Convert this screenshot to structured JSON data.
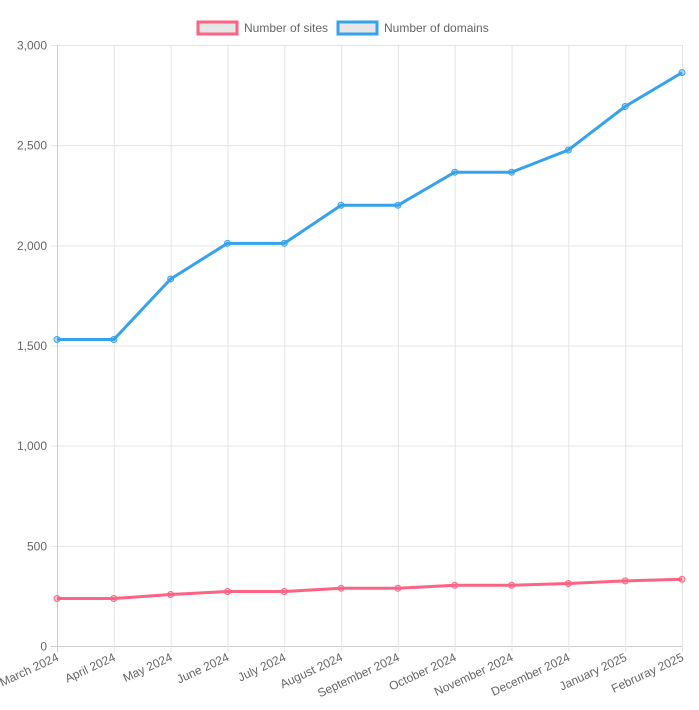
{
  "chart_data": {
    "type": "line",
    "title": "",
    "xlabel": "",
    "ylabel": "",
    "ylim": [
      0,
      3000
    ],
    "yticks": [
      0,
      500,
      1000,
      1500,
      2000,
      2500,
      3000
    ],
    "ytick_labels": [
      "0",
      "500",
      "1,000",
      "1,500",
      "2,000",
      "2,500",
      "3,000"
    ],
    "grid": true,
    "legend_position": "top",
    "categories": [
      "March 2024",
      "April 2024",
      "May 2024",
      "June 2024",
      "July 2024",
      "August 2024",
      "September 2024",
      "October 2024",
      "November 2024",
      "December 2024",
      "January 2025",
      "Februray 2025"
    ],
    "series": [
      {
        "name": "Number of sites",
        "color": "#ff6384",
        "values": [
          237,
          237,
          257,
          272,
          272,
          288,
          288,
          303,
          303,
          312,
          325,
          333
        ]
      },
      {
        "name": "Number of domains",
        "color": "#36a2eb",
        "values": [
          1530,
          1530,
          1832,
          2010,
          2010,
          2200,
          2200,
          2365,
          2365,
          2476,
          2693,
          2862
        ]
      }
    ]
  }
}
